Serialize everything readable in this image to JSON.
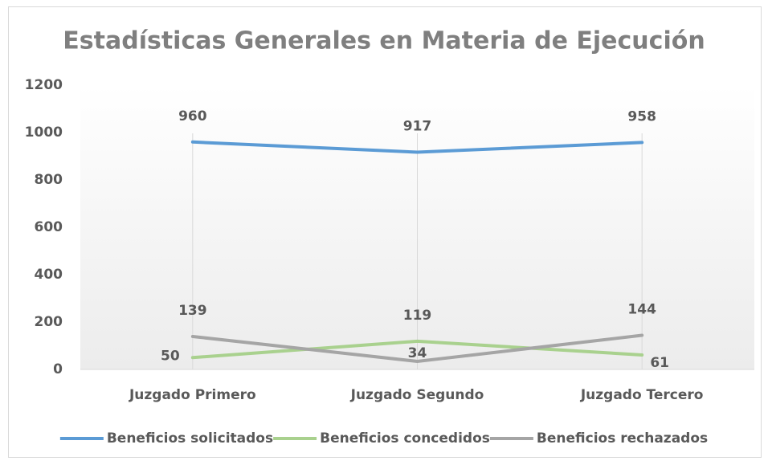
{
  "chart_data": {
    "type": "line",
    "title": "Estadísticas Generales en Materia de Ejecución",
    "categories": [
      "Juzgado Primero",
      "Juzgado Segundo",
      "Juzgado Tercero"
    ],
    "series": [
      {
        "name": "Beneficios solicitados",
        "color": "#5b9bd5",
        "values": [
          960,
          917,
          958
        ]
      },
      {
        "name": "Beneficios concedidos",
        "color": "#a9d18e",
        "values": [
          50,
          119,
          61
        ]
      },
      {
        "name": "Beneficios rechazados",
        "color": "#a5a5a5",
        "values": [
          139,
          34,
          144
        ]
      }
    ],
    "ylim": [
      0,
      1200
    ],
    "yticks": [
      0,
      200,
      400,
      600,
      800,
      1000,
      1200
    ],
    "grid": true,
    "legend": "bottom"
  }
}
